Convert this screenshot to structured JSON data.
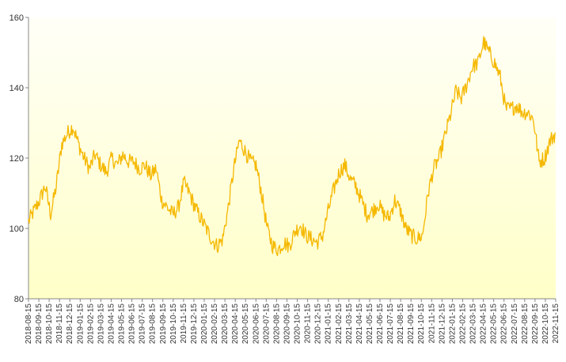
{
  "chart_data": {
    "type": "line",
    "title": "",
    "xlabel": "",
    "ylabel": "",
    "ylim": [
      80,
      160
    ],
    "yticks": [
      80,
      100,
      120,
      140,
      160
    ],
    "grid": false,
    "line_color": "#F5B800",
    "background_gradient": [
      "#FFFFF8",
      "#FFFFC8"
    ],
    "x_tick_labels": [
      "2018-08-15",
      "2018-09-15",
      "2018-10-15",
      "2018-11-15",
      "2018-12-15",
      "2019-01-15",
      "2019-02-15",
      "2019-03-15",
      "2019-04-15",
      "2019-05-15",
      "2019-06-15",
      "2019-07-15",
      "2019-08-15",
      "2019-09-15",
      "2019-10-15",
      "2019-11-15",
      "2019-12-15",
      "2020-01-15",
      "2020-02-15",
      "2020-03-15",
      "2020-04-15",
      "2020-05-15",
      "2020-06-15",
      "2020-07-15",
      "2020-08-15",
      "2020-09-15",
      "2020-10-15",
      "2020-11-15",
      "2020-12-15",
      "2021-01-15",
      "2021-02-15",
      "2021-03-15",
      "2021-04-15",
      "2021-05-15",
      "2021-06-15",
      "2021-07-15",
      "2021-08-15",
      "2021-09-15",
      "2021-10-15",
      "2021-11-15",
      "2021-12-15",
      "2022-01-15",
      "2022-02-15",
      "2022-03-15",
      "2022-04-15",
      "2022-05-15",
      "2022-06-15",
      "2022-07-15",
      "2022-08-15",
      "2022-09-15",
      "2022-10-15",
      "2022-11-15"
    ],
    "series": [
      {
        "values": [
          102,
          105,
          108,
          112,
          104,
          112,
          124,
          127,
          129,
          124,
          120,
          117,
          121,
          118,
          116,
          120,
          118,
          121,
          119,
          119,
          117,
          118,
          115,
          117,
          108,
          106,
          104,
          106,
          113,
          110,
          106,
          103,
          100,
          97,
          95,
          97,
          106,
          117,
          125,
          122,
          119,
          118,
          110,
          100,
          95,
          94,
          96,
          95,
          99,
          101,
          98,
          97,
          96,
          98,
          105,
          111,
          116,
          118,
          114,
          112,
          108,
          104,
          105,
          107,
          104,
          103,
          108,
          105,
          100,
          98,
          97,
          98,
          110,
          117,
          120,
          126,
          132,
          139,
          137,
          141,
          146,
          147,
          153,
          150,
          147,
          143,
          134,
          134,
          135,
          133,
          133,
          131,
          119,
          120,
          125,
          127
        ]
      }
    ]
  }
}
